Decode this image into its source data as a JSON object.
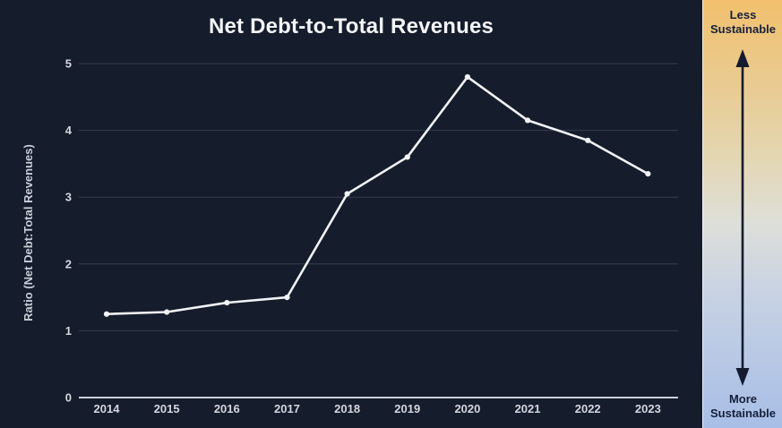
{
  "chart_data": {
    "type": "line",
    "title": "Net Debt-to-Total Revenues",
    "ylabel": "Ratio (Net Debt:Total Revenues)",
    "xlabel": "",
    "categories": [
      "2014",
      "2015",
      "2016",
      "2017",
      "2018",
      "2019",
      "2020",
      "2021",
      "2022",
      "2023"
    ],
    "values": [
      1.25,
      1.28,
      1.42,
      1.5,
      3.05,
      3.6,
      4.8,
      4.15,
      3.85,
      3.35
    ],
    "yticks": [
      0,
      1,
      2,
      3,
      4,
      5
    ],
    "ylim": [
      0,
      5
    ],
    "grid": true,
    "legend": "none",
    "marker": "circle"
  },
  "colors": {
    "background": "#151c2c",
    "gridline": "#343d50",
    "axis_line": "#ccd1da",
    "tick_text": "#d3d7df",
    "title_text": "#f4f5f7",
    "axis_label_text": "#c9ced8",
    "line": "#f2f3f5"
  },
  "sidebar": {
    "top_label": "Less Sustainable",
    "bottom_label": "More Sustainable",
    "label_color": "#16203a",
    "arrow_color": "#141b30",
    "gradient": [
      "#f2c06e 0%",
      "#e9cb92 20%",
      "#e4d6b0 36%",
      "#dedfd9 52%",
      "#c6d1e4 70%",
      "#a8bee6 100%"
    ]
  }
}
